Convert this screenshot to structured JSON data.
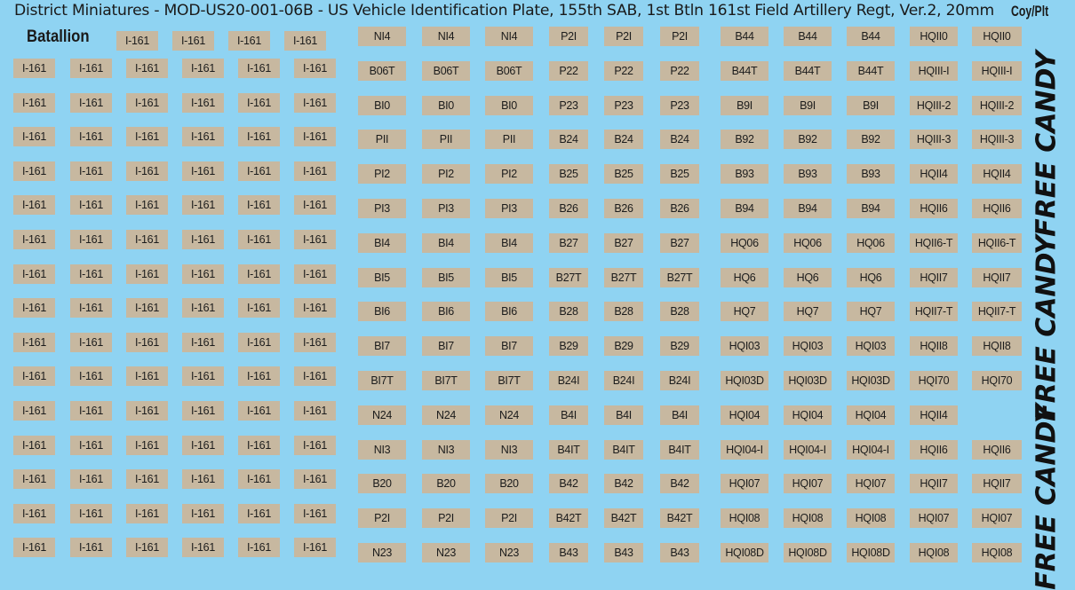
{
  "sheet_title": "District Miniatures - MOD-US20-001-06B - US Vehicle Identification Plate, 155th SAB, 1st Btln 161st Field Artillery Regt, Ver.2, 20mm",
  "coy_label": "Coy/Plt",
  "battalion_label": "Batallion",
  "battalion_plate": "I-161",
  "battalion_rows": 15,
  "free_candy": [
    "FREE CANDY",
    "FREE CANDY",
    "FREE CANDY"
  ],
  "company_rows": [
    [
      "NI4",
      "NI4",
      "NI4",
      "P2I",
      "P2I",
      "P2I",
      "B44",
      "B44",
      "B44",
      "HQII0",
      "HQII0"
    ],
    [
      "B06T",
      "B06T",
      "B06T",
      "P22",
      "P22",
      "P22",
      "B44T",
      "B44T",
      "B44T",
      "HQIII-I",
      "HQIII-I"
    ],
    [
      "BI0",
      "BI0",
      "BI0",
      "P23",
      "P23",
      "P23",
      "B9I",
      "B9I",
      "B9I",
      "HQIII-2",
      "HQIII-2"
    ],
    [
      "PII",
      "PII",
      "PII",
      "B24",
      "B24",
      "B24",
      "B92",
      "B92",
      "B92",
      "HQIII-3",
      "HQIII-3"
    ],
    [
      "PI2",
      "PI2",
      "PI2",
      "B25",
      "B25",
      "B25",
      "B93",
      "B93",
      "B93",
      "HQII4",
      "HQII4"
    ],
    [
      "PI3",
      "PI3",
      "PI3",
      "B26",
      "B26",
      "B26",
      "B94",
      "B94",
      "B94",
      "HQII6",
      "HQII6"
    ],
    [
      "BI4",
      "BI4",
      "BI4",
      "B27",
      "B27",
      "B27",
      "HQ06",
      "HQ06",
      "HQ06",
      "HQII6-T",
      "HQII6-T"
    ],
    [
      "BI5",
      "BI5",
      "BI5",
      "B27T",
      "B27T",
      "B27T",
      "HQ6",
      "HQ6",
      "HQ6",
      "HQII7",
      "HQII7"
    ],
    [
      "BI6",
      "BI6",
      "BI6",
      "B28",
      "B28",
      "B28",
      "HQ7",
      "HQ7",
      "HQ7",
      "HQII7-T",
      "HQII7-T"
    ],
    [
      "BI7",
      "BI7",
      "BI7",
      "B29",
      "B29",
      "B29",
      "HQI03",
      "HQI03",
      "HQI03",
      "HQII8",
      "HQII8"
    ],
    [
      "BI7T",
      "BI7T",
      "BI7T",
      "B24I",
      "B24I",
      "B24I",
      "HQI03D",
      "HQI03D",
      "HQI03D",
      "HQI70",
      "HQI70"
    ],
    [
      "N24",
      "N24",
      "N24",
      "B4I",
      "B4I",
      "B4I",
      "HQI04",
      "HQI04",
      "HQI04",
      "HQII4",
      ""
    ],
    [
      "NI3",
      "NI3",
      "NI3",
      "B4IT",
      "B4IT",
      "B4IT",
      "HQI04-I",
      "HQI04-I",
      "HQI04-I",
      "HQII6",
      "HQII6"
    ],
    [
      "B20",
      "B20",
      "B20",
      "B42",
      "B42",
      "B42",
      "HQI07",
      "HQI07",
      "HQI07",
      "HQII7",
      "HQII7"
    ],
    [
      "P2I",
      "P2I",
      "P2I",
      "B42T",
      "B42T",
      "B42T",
      "HQI08",
      "HQI08",
      "HQI08",
      "HQI07",
      "HQI07"
    ],
    [
      "N23",
      "N23",
      "N23",
      "B43",
      "B43",
      "B43",
      "HQI08D",
      "HQI08D",
      "HQI08D",
      "HQI08",
      "HQI08"
    ]
  ]
}
